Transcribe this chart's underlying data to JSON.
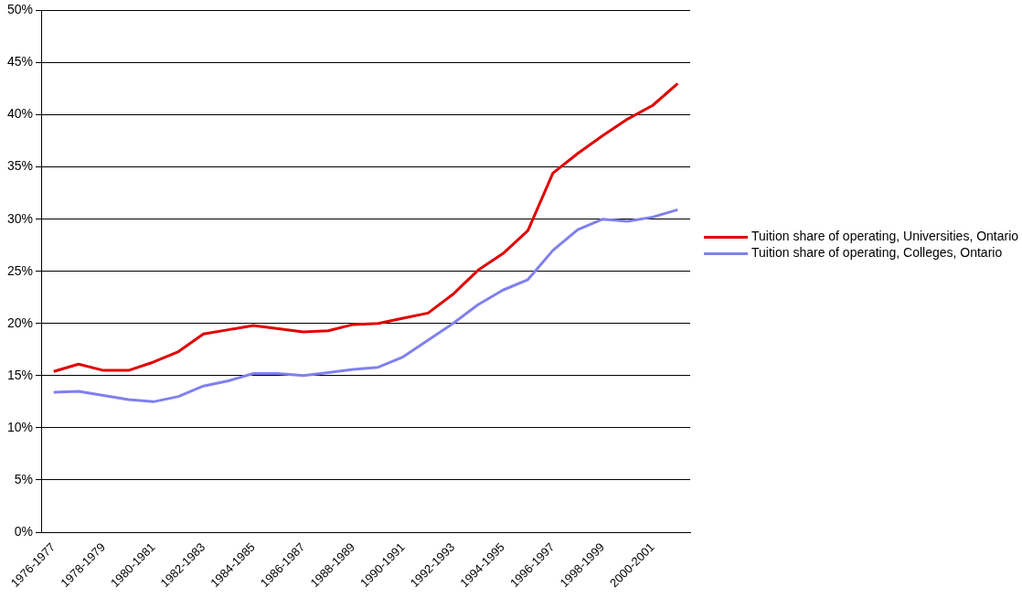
{
  "chart_data": {
    "type": "line",
    "categories": [
      "1976-1977",
      null,
      "1978-1979",
      null,
      "1980-1981",
      null,
      "1982-1983",
      null,
      "1984-1985",
      null,
      "1986-1987",
      null,
      "1988-1989",
      null,
      "1990-1991",
      null,
      "1992-1993",
      null,
      "1994-1995",
      null,
      "1996-1997",
      null,
      "1998-1999",
      null,
      "2000-2001",
      null
    ],
    "series": [
      {
        "name": "Tuition share of operating, Universities, Ontario",
        "color": "#e00000",
        "values": [
          15.4,
          16.1,
          15.5,
          15.5,
          16.3,
          17.3,
          19.0,
          19.4,
          19.8,
          19.5,
          19.2,
          19.3,
          19.9,
          20.0,
          20.5,
          21.0,
          22.8,
          25.1,
          26.7,
          28.9,
          34.4,
          36.3,
          38.0,
          39.6,
          40.9,
          43.0
        ]
      },
      {
        "name": "Tuition share of operating, Colleges, Ontario",
        "color": "#8080ee",
        "values": [
          13.4,
          13.5,
          13.1,
          12.7,
          12.5,
          13.0,
          14.0,
          14.5,
          15.2,
          15.2,
          15.0,
          15.3,
          15.6,
          15.8,
          16.8,
          18.4,
          20.0,
          21.8,
          23.2,
          24.2,
          27.0,
          29.0,
          30.0,
          29.8,
          30.2,
          30.9
        ]
      }
    ],
    "ylim": [
      0,
      50
    ],
    "yticks": [
      {
        "value": 0,
        "label": "0%"
      },
      {
        "value": 5,
        "label": "5%"
      },
      {
        "value": 10,
        "label": "10%"
      },
      {
        "value": 15,
        "label": "15%"
      },
      {
        "value": 20,
        "label": "20%"
      },
      {
        "value": 25,
        "label": "25%"
      },
      {
        "value": 30,
        "label": "30%"
      },
      {
        "value": 35,
        "label": "35%"
      },
      {
        "value": 40,
        "label": "40%"
      },
      {
        "value": 45,
        "label": "45%"
      },
      {
        "value": 50,
        "label": "50%"
      }
    ],
    "grid": "y",
    "legend": "right",
    "marker": "none",
    "line_style": "solid"
  }
}
